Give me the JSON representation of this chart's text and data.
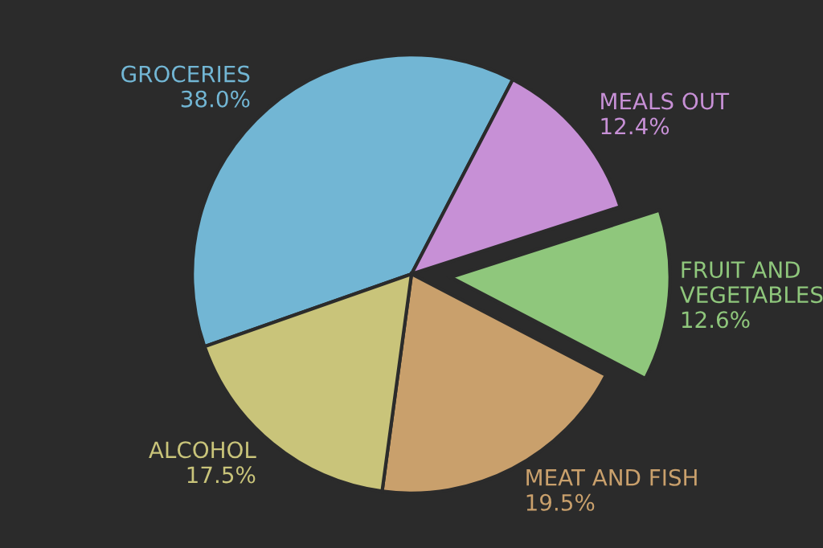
{
  "chart_data": {
    "type": "pie",
    "categories": [
      "GROCERIES",
      "MEALS OUT",
      "FRUIT AND VEGETABLES",
      "MEAT AND FISH",
      "ALCOHOL"
    ],
    "values": [
      38.0,
      12.4,
      12.6,
      19.5,
      17.5
    ],
    "value_labels": [
      "38.0%",
      "12.4%",
      "12.6%",
      "19.5%",
      "17.5%"
    ],
    "colors": [
      "#72b6d4",
      "#c790d6",
      "#8fc77c",
      "#c9a06c",
      "#c9c47a"
    ],
    "legend": false
  }
}
